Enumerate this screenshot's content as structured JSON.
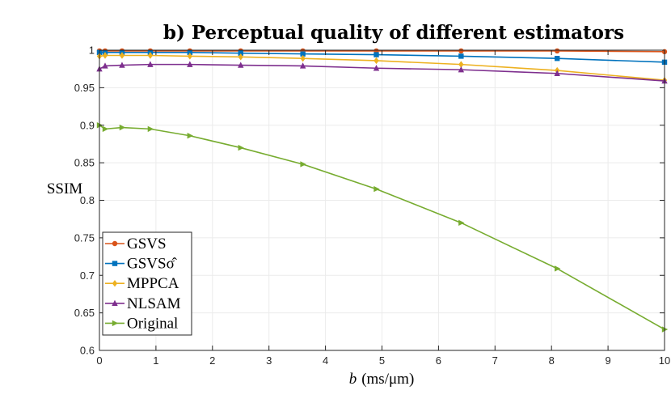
{
  "chart_data": {
    "type": "line",
    "title": "b) Perceptual quality of different estimators",
    "xlabel_prefix": "b",
    "xlabel_units": "(ms/μm)",
    "ylabel": "SSIM",
    "xlim": [
      0,
      10
    ],
    "ylim": [
      0.6,
      1.0
    ],
    "xticks": [
      0,
      1,
      2,
      3,
      4,
      5,
      6,
      7,
      8,
      9,
      10
    ],
    "xtick_labels": [
      "0",
      "1",
      "2",
      "3",
      "4",
      "5",
      "6",
      "7",
      "8",
      "9",
      "10"
    ],
    "yticks": [
      0.6,
      0.65,
      0.7,
      0.75,
      0.8,
      0.85,
      0.9,
      0.95,
      1.0
    ],
    "ytick_labels": [
      "0.6",
      "0.65",
      "0.7",
      "0.75",
      "0.8",
      "0.85",
      "0.9",
      "0.95",
      "1"
    ],
    "grid": true,
    "legend_position": "bottom-left",
    "x": [
      0,
      0.1,
      0.4,
      0.9,
      1.6,
      2.5,
      3.6,
      4.9,
      6.4,
      8.1,
      10
    ],
    "series": [
      {
        "name": "GSVS",
        "legend_label": "GSVS",
        "color": "#D95319",
        "marker": "circle",
        "values": [
          0.999,
          0.999,
          0.999,
          0.999,
          0.999,
          0.999,
          0.999,
          0.999,
          0.999,
          0.999,
          0.998
        ]
      },
      {
        "name": "GSVSσ̂",
        "legend_label": "GSVSσ̂",
        "color": "#0072BD",
        "marker": "square",
        "values": [
          0.997,
          0.997,
          0.997,
          0.997,
          0.997,
          0.996,
          0.995,
          0.994,
          0.992,
          0.989,
          0.984
        ]
      },
      {
        "name": "MPPCA",
        "legend_label": "MPPCA",
        "color": "#EDB120",
        "marker": "diamond",
        "values": [
          0.992,
          0.993,
          0.993,
          0.993,
          0.992,
          0.991,
          0.989,
          0.986,
          0.981,
          0.973,
          0.96
        ]
      },
      {
        "name": "NLSAM",
        "legend_label": "NLSAM",
        "color": "#7E2F8E",
        "marker": "triangle-up",
        "values": [
          0.975,
          0.979,
          0.98,
          0.981,
          0.981,
          0.98,
          0.979,
          0.976,
          0.974,
          0.969,
          0.959
        ]
      },
      {
        "name": "Original",
        "legend_label": "Original",
        "color": "#77AC30",
        "marker": "triangle-right",
        "values": [
          0.9,
          0.895,
          0.897,
          0.895,
          0.886,
          0.87,
          0.848,
          0.815,
          0.77,
          0.709,
          0.628
        ]
      }
    ]
  }
}
